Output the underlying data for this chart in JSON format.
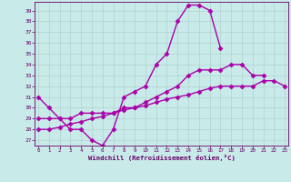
{
  "xlabel": "Windchill (Refroidissement éolien,°C)",
  "background_color": "#c8eae8",
  "line_color": "#aa00aa",
  "x_hours": [
    0,
    1,
    2,
    3,
    4,
    5,
    6,
    7,
    8,
    9,
    10,
    11,
    12,
    13,
    14,
    15,
    16,
    17,
    18,
    19,
    20,
    21,
    22,
    23
  ],
  "line1_x": [
    0,
    1,
    2,
    3,
    4,
    5,
    6,
    7,
    8,
    9,
    10,
    11,
    12,
    13,
    14,
    15,
    16,
    17
  ],
  "line1_y": [
    31,
    30,
    29,
    28,
    28,
    27,
    26.5,
    28,
    31,
    31.5,
    32,
    34,
    35,
    38,
    39.5,
    39.5,
    39,
    35.5
  ],
  "line2_x": [
    0,
    1,
    2,
    3,
    4,
    5,
    6,
    7,
    8,
    9,
    10,
    11,
    12,
    13,
    14,
    15,
    16,
    17,
    18,
    19,
    20,
    21
  ],
  "line2_y": [
    29,
    29,
    29,
    29,
    29.5,
    29.5,
    29.5,
    29.5,
    30,
    30,
    30.5,
    31,
    31.5,
    32,
    33,
    33.5,
    33.5,
    33.5,
    34,
    34,
    33,
    33
  ],
  "line3_x": [
    0,
    1,
    2,
    3,
    4,
    5,
    6,
    7,
    8,
    9,
    10,
    11,
    12,
    13,
    14,
    15,
    16,
    17,
    18,
    19,
    20,
    21,
    22,
    23
  ],
  "line3_y": [
    28,
    28,
    28.2,
    28.5,
    28.7,
    29,
    29.2,
    29.5,
    29.8,
    30,
    30.2,
    30.5,
    30.8,
    31,
    31.2,
    31.5,
    31.8,
    32,
    32,
    32,
    32,
    32.5,
    32.5,
    32
  ],
  "yticks": [
    27,
    28,
    29,
    30,
    31,
    32,
    33,
    34,
    35,
    36,
    37,
    38,
    39
  ],
  "ylim_min": 26.5,
  "ylim_max": 39.8
}
